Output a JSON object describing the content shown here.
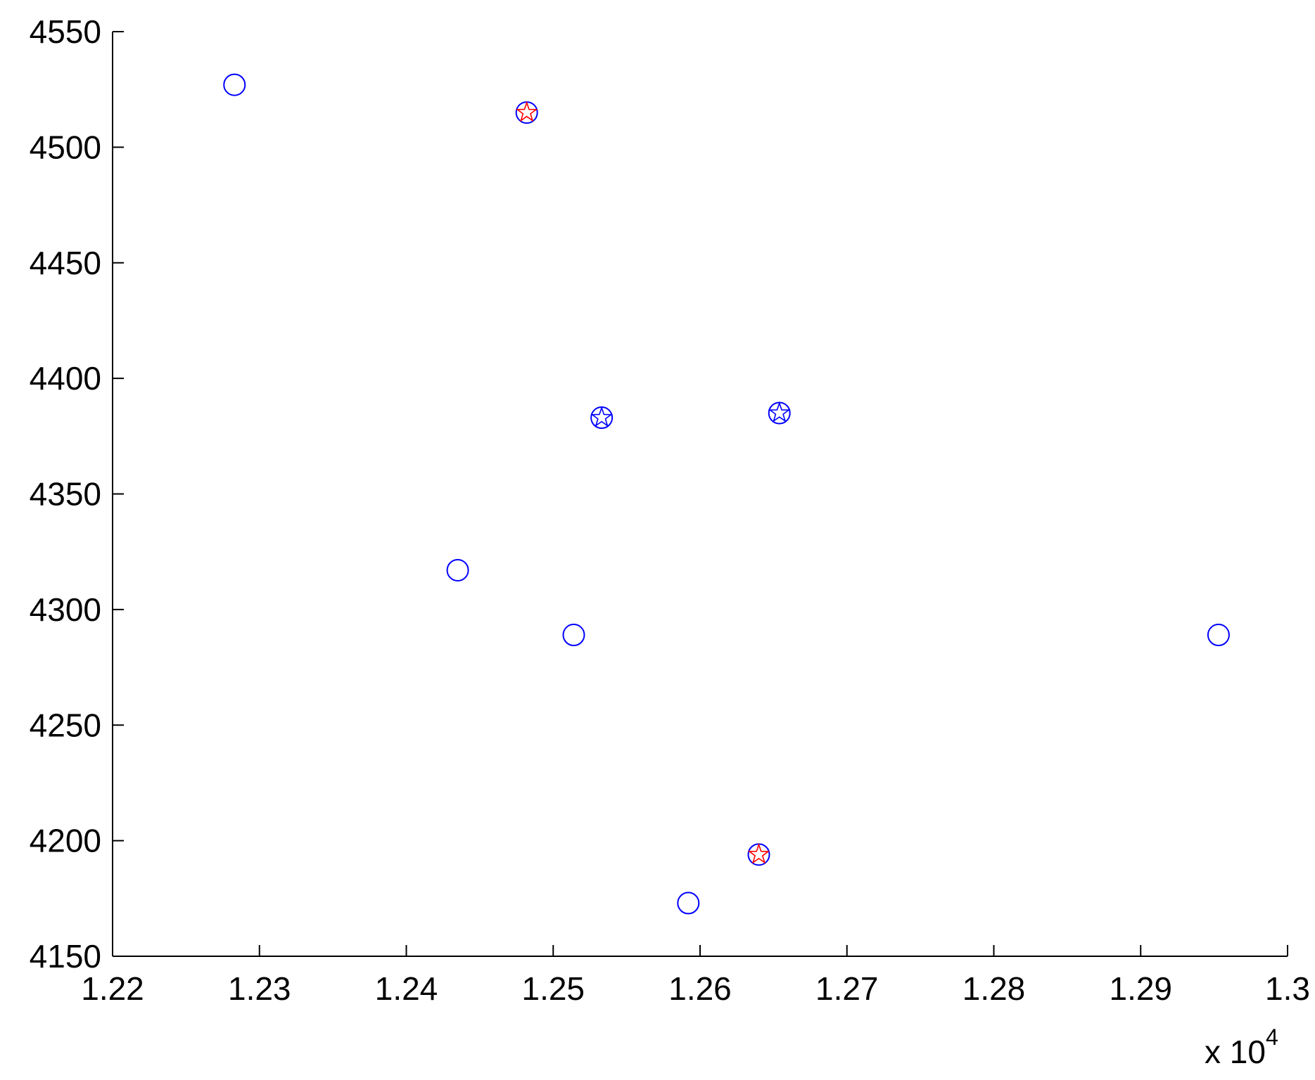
{
  "chart_data": {
    "type": "scatter",
    "title": "",
    "xlabel": "",
    "ylabel": "",
    "xlim": [
      12200,
      13000
    ],
    "ylim": [
      4150,
      4550
    ],
    "x_exponent_label": {
      "prefix": "x 10",
      "exponent": "4"
    },
    "x_ticks": [
      {
        "value": 12200,
        "label": "1.22"
      },
      {
        "value": 12300,
        "label": "1.23"
      },
      {
        "value": 12400,
        "label": "1.24"
      },
      {
        "value": 12500,
        "label": "1.25"
      },
      {
        "value": 12600,
        "label": "1.26"
      },
      {
        "value": 12700,
        "label": "1.27"
      },
      {
        "value": 12800,
        "label": "1.28"
      },
      {
        "value": 12900,
        "label": "1.29"
      },
      {
        "value": 13000,
        "label": "1.3"
      }
    ],
    "y_ticks": [
      {
        "value": 4150,
        "label": "4150"
      },
      {
        "value": 4200,
        "label": "4200"
      },
      {
        "value": 4250,
        "label": "4250"
      },
      {
        "value": 4300,
        "label": "4300"
      },
      {
        "value": 4350,
        "label": "4350"
      },
      {
        "value": 4400,
        "label": "4400"
      },
      {
        "value": 4450,
        "label": "4450"
      },
      {
        "value": 4500,
        "label": "4500"
      },
      {
        "value": 4550,
        "label": "4550"
      }
    ],
    "grid": false,
    "series": [
      {
        "marker": "circle",
        "color": "#0000ff",
        "points": [
          {
            "x": 12283,
            "y": 4527
          },
          {
            "x": 12482,
            "y": 4515
          },
          {
            "x": 12533,
            "y": 4383
          },
          {
            "x": 12654,
            "y": 4385
          },
          {
            "x": 12435,
            "y": 4317
          },
          {
            "x": 12514,
            "y": 4289
          },
          {
            "x": 12953,
            "y": 4289
          },
          {
            "x": 12592,
            "y": 4173
          },
          {
            "x": 12640,
            "y": 4194
          }
        ]
      },
      {
        "marker": "star",
        "color": "#ff0000",
        "points": [
          {
            "x": 12482,
            "y": 4515
          },
          {
            "x": 12640,
            "y": 4194
          }
        ]
      },
      {
        "marker": "star",
        "color": "#0000ff",
        "points": [
          {
            "x": 12533,
            "y": 4383
          },
          {
            "x": 12654,
            "y": 4385
          }
        ]
      }
    ]
  }
}
